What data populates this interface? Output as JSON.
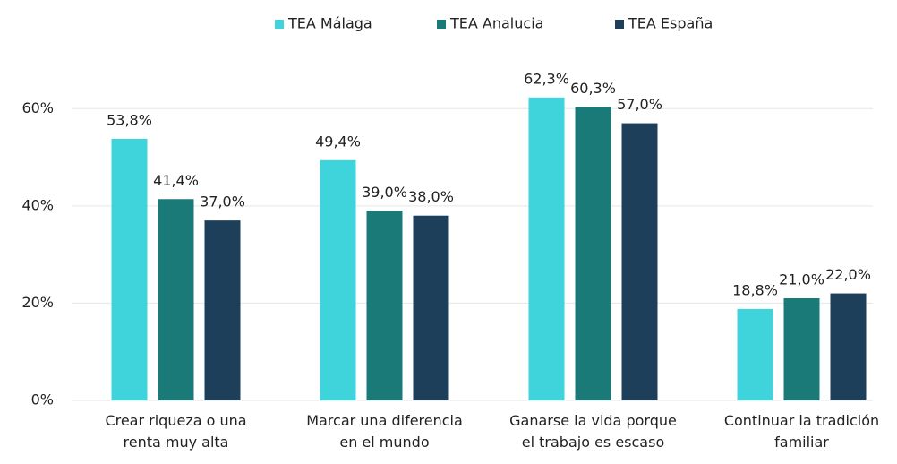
{
  "chart_data": {
    "type": "bar",
    "categories": [
      "Crear riqueza o una\nrenta muy alta",
      "Marcar una diferencia\nen el mundo",
      "Ganarse la vida porque\nel trabajo es escaso",
      "Continuar la tradición\nfamiliar"
    ],
    "series": [
      {
        "name": "TEA Málaga",
        "color": "#3fd3dc",
        "values": [
          53.8,
          49.4,
          62.3,
          18.8
        ],
        "value_labels": [
          "53,8%",
          "49,4%",
          "62,3%",
          "18,8%"
        ]
      },
      {
        "name": "TEA Analucia",
        "color": "#1a7a78",
        "values": [
          41.4,
          39.0,
          60.3,
          21.0
        ],
        "value_labels": [
          "41,4%",
          "39,0%",
          "60,3%",
          "21,0%"
        ]
      },
      {
        "name": "TEA España",
        "color": "#1d3f5a",
        "values": [
          37.0,
          38.0,
          57.0,
          22.0
        ],
        "value_labels": [
          "37,0%",
          "38,0%",
          "57,0%",
          "22,0%"
        ]
      }
    ],
    "ylim": [
      0,
      70
    ],
    "yticks": [
      {
        "value": 0,
        "label": "0%"
      },
      {
        "value": 20,
        "label": "20%"
      },
      {
        "value": 40,
        "label": "40%"
      },
      {
        "value": 60,
        "label": "60%"
      }
    ],
    "grid": true,
    "legend": "top"
  }
}
